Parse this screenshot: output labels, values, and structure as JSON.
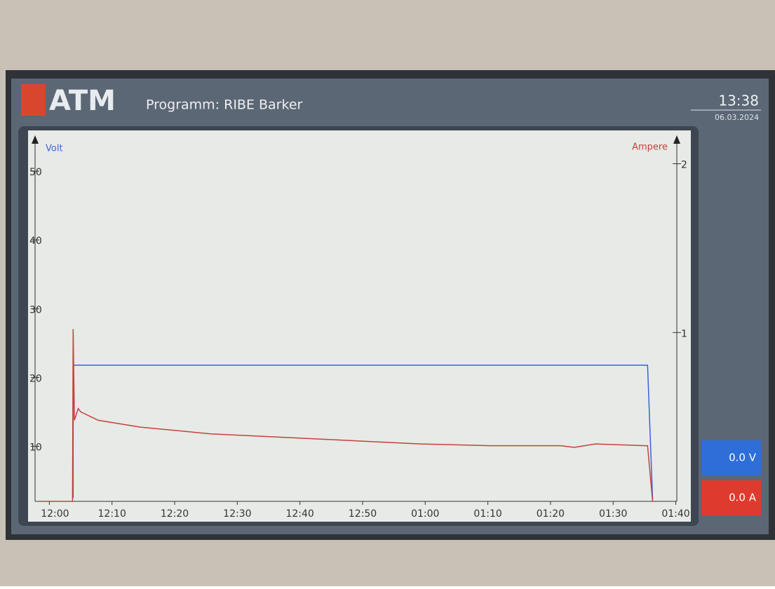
{
  "header": {
    "logo": "ATM",
    "title": "Programm: RIBE Barker",
    "time": "13:38",
    "date": "06.03.2024"
  },
  "readouts": {
    "volt": "0.0 V",
    "current": "0.0 A"
  },
  "chart_data": {
    "type": "line",
    "y_label": "Volt",
    "y2_label": "Ampere",
    "xlim": [
      -1.5,
      100.5
    ],
    "xticks": [
      {
        "value": 0,
        "label": "12:00"
      },
      {
        "value": 10,
        "label": "12:10"
      },
      {
        "value": 20,
        "label": "12:20"
      },
      {
        "value": 30,
        "label": "12:30"
      },
      {
        "value": 40,
        "label": "12:40"
      },
      {
        "value": 50,
        "label": "12:50"
      },
      {
        "value": 60,
        "label": "01:00"
      },
      {
        "value": 70,
        "label": "01:10"
      },
      {
        "value": 80,
        "label": "01:20"
      },
      {
        "value": 90,
        "label": "01:30"
      },
      {
        "value": 100,
        "label": "01:40"
      }
    ],
    "ylim": [
      2,
      55
    ],
    "yticks": [
      10,
      20,
      30,
      40,
      50
    ],
    "y2lim": [
      0,
      2.16
    ],
    "y2ticks": [
      1,
      2
    ],
    "series": [
      {
        "name": "Volt",
        "color": "#3a64d6",
        "x": [
          3.8,
          3.8,
          95.5,
          96.3
        ],
        "values": [
          2.5,
          21.8,
          21.8,
          2.2
        ]
      },
      {
        "name": "Ampere",
        "color": "#c8403a",
        "axis": "y2",
        "x": [
          -1.5,
          3.7,
          3.8,
          4.0,
          4.6,
          5.0,
          7.8,
          14.5,
          25.7,
          36.9,
          48,
          59.2,
          70.4,
          81.6,
          83.8,
          87.2,
          95,
          95.5,
          96.3
        ],
        "values": [
          0,
          0,
          1.02,
          0.48,
          0.55,
          0.53,
          0.48,
          0.44,
          0.4,
          0.38,
          0.36,
          0.34,
          0.33,
          0.33,
          0.32,
          0.34,
          0.33,
          0.33,
          0
        ]
      }
    ]
  }
}
